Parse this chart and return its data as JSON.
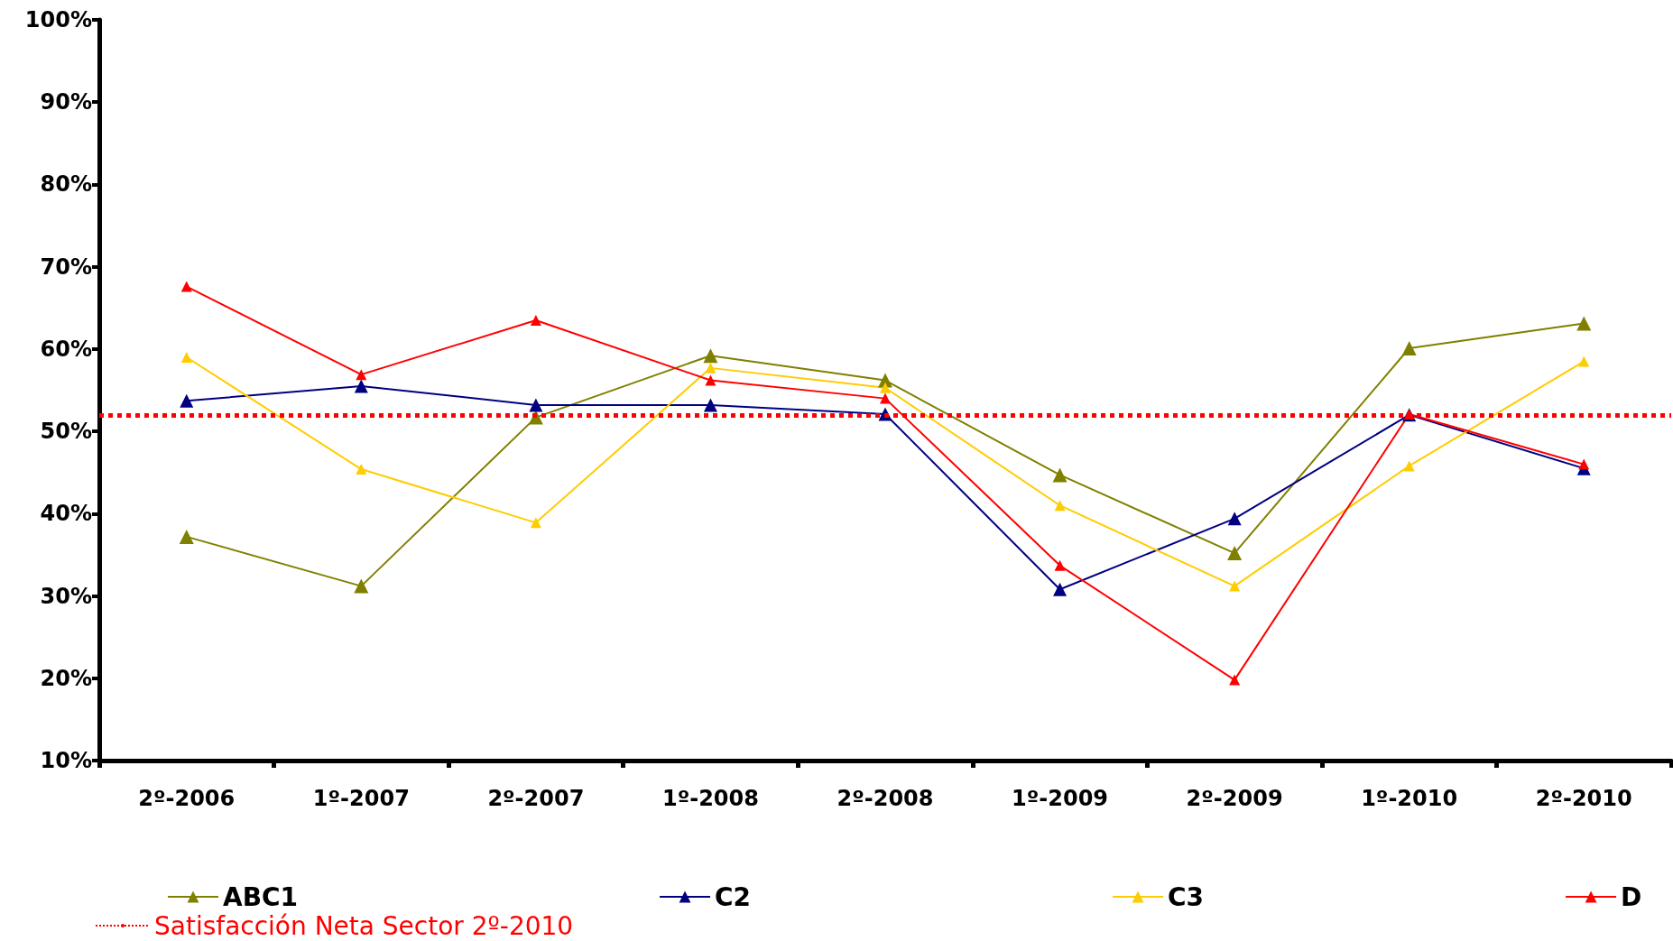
{
  "chart_data": {
    "type": "line",
    "categories": [
      "2º-2006",
      "1º-2007",
      "2º-2007",
      "1º-2008",
      "2º-2008",
      "1º-2009",
      "2º-2009",
      "1º-2010",
      "2º-2010"
    ],
    "series": [
      {
        "name": "ABC1",
        "color": "#808000",
        "values": [
          37.2,
          31.2,
          51.7,
          59.2,
          56.2,
          44.7,
          35.2,
          60.1,
          63.1
        ]
      },
      {
        "name": "C2",
        "color": "#000080",
        "values": [
          53.7,
          55.5,
          53.2,
          53.2,
          52.1,
          30.8,
          39.4,
          52.0,
          45.5
        ]
      },
      {
        "name": "C3",
        "color": "#ffcc00",
        "values": [
          59.0,
          45.4,
          38.9,
          57.7,
          55.3,
          41.0,
          31.2,
          45.8,
          58.5
        ]
      },
      {
        "name": "D",
        "color": "#ff0000",
        "values": [
          67.6,
          56.9,
          63.5,
          56.2,
          54.0,
          33.7,
          19.8,
          52.1,
          46.0
        ]
      }
    ],
    "ylim": [
      10,
      100
    ],
    "yticks": [
      {
        "value": 10,
        "label": "10%"
      },
      {
        "value": 20,
        "label": "20%"
      },
      {
        "value": 30,
        "label": "30%"
      },
      {
        "value": 40,
        "label": "40%"
      },
      {
        "value": 50,
        "label": "50%"
      },
      {
        "value": 60,
        "label": "60%"
      },
      {
        "value": 70,
        "label": "70%"
      },
      {
        "value": 80,
        "label": "80%"
      },
      {
        "value": 90,
        "label": "90%"
      },
      {
        "value": 100,
        "label": "100%"
      }
    ],
    "ref_lines": [
      {
        "axis": "y",
        "value": 52.0,
        "label": "Satisfacción Neta Sector 2º-2010",
        "color": "#ff0000",
        "line_style": "dotted"
      }
    ],
    "grid": false,
    "legend": "bottom",
    "marker": "triangle",
    "line_style": "solid"
  }
}
